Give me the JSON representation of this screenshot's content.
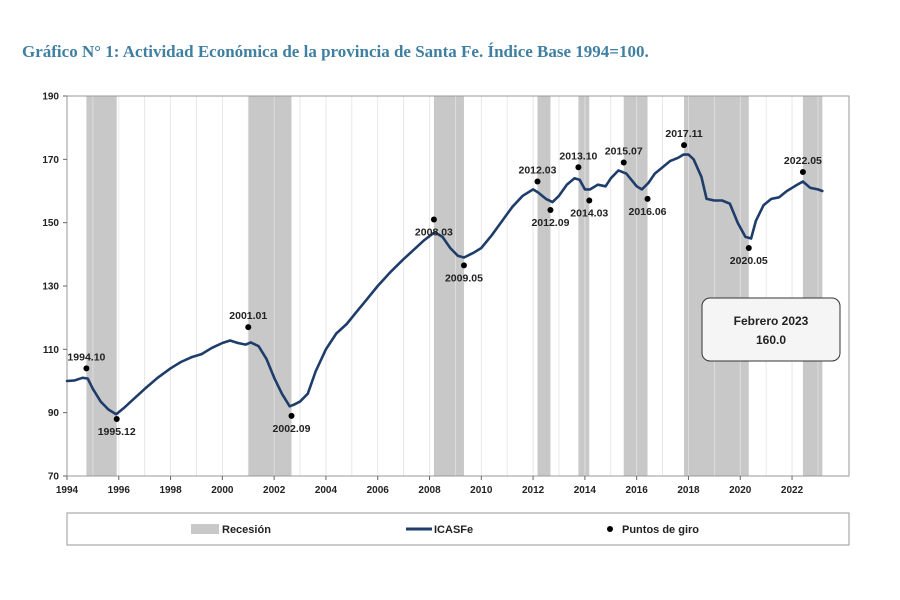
{
  "chart_data": {
    "type": "line",
    "title": "Gráfico N° 1: Actividad Económica de la provincia de Santa Fe. Índice Base 1994=100.",
    "xlabel": "",
    "ylabel": "",
    "xlim": [
      1994,
      2024.2
    ],
    "ylim": [
      70,
      190
    ],
    "x_ticks": [
      1994,
      1996,
      1998,
      2000,
      2002,
      2004,
      2006,
      2008,
      2010,
      2012,
      2014,
      2016,
      2018,
      2020,
      2022
    ],
    "y_ticks": [
      70,
      90,
      110,
      130,
      150,
      170,
      190
    ],
    "grid": "vertical",
    "colors": {
      "series": "#1f3d6b",
      "recession": "#c8c8c8",
      "title": "#3f7fa2",
      "points": "#000000"
    },
    "recessions": [
      [
        1994.75,
        1995.92
      ],
      [
        2001.0,
        2002.67
      ],
      [
        2008.17,
        2009.33
      ],
      [
        2012.17,
        2012.67
      ],
      [
        2013.75,
        2014.17
      ],
      [
        2015.5,
        2016.42
      ],
      [
        2017.83,
        2020.33
      ],
      [
        2022.42,
        2023.17
      ]
    ],
    "series": [
      {
        "name": "ICASFe",
        "x": [
          1994.0,
          1994.3,
          1994.6,
          1994.8,
          1995.0,
          1995.3,
          1995.6,
          1995.9,
          1996.2,
          1996.6,
          1997.0,
          1997.5,
          1998.0,
          1998.4,
          1998.8,
          1999.2,
          1999.6,
          2000.0,
          2000.3,
          2000.6,
          2000.9,
          2001.1,
          2001.4,
          2001.7,
          2002.0,
          2002.3,
          2002.6,
          2002.75,
          2003.0,
          2003.3,
          2003.6,
          2004.0,
          2004.4,
          2004.8,
          2005.2,
          2005.6,
          2006.0,
          2006.5,
          2007.0,
          2007.4,
          2007.8,
          2008.2,
          2008.5,
          2008.8,
          2009.1,
          2009.33,
          2009.7,
          2010.0,
          2010.4,
          2010.8,
          2011.2,
          2011.6,
          2012.0,
          2012.2,
          2012.5,
          2012.75,
          2013.0,
          2013.3,
          2013.6,
          2013.8,
          2014.0,
          2014.2,
          2014.5,
          2014.8,
          2015.0,
          2015.3,
          2015.6,
          2015.8,
          2016.0,
          2016.2,
          2016.45,
          2016.7,
          2017.0,
          2017.3,
          2017.6,
          2017.8,
          2018.0,
          2018.2,
          2018.5,
          2018.7,
          2019.0,
          2019.3,
          2019.6,
          2019.9,
          2020.2,
          2020.42,
          2020.6,
          2020.9,
          2021.2,
          2021.5,
          2021.8,
          2022.1,
          2022.42,
          2022.7,
          2023.0,
          2023.17
        ],
        "values": [
          100.0,
          100.2,
          101.0,
          100.8,
          97.5,
          93.5,
          91.0,
          89.5,
          91.5,
          94.5,
          97.5,
          101.0,
          104.0,
          106.0,
          107.5,
          108.5,
          110.5,
          112.0,
          112.8,
          112.0,
          111.5,
          112.2,
          111.0,
          107.0,
          101.0,
          96.0,
          92.0,
          92.5,
          93.5,
          96.0,
          103.0,
          110.0,
          115.0,
          118.0,
          122.0,
          126.0,
          130.0,
          134.5,
          138.5,
          141.5,
          144.5,
          147.0,
          145.5,
          142.0,
          139.5,
          139.0,
          140.5,
          142.0,
          146.0,
          150.5,
          155.0,
          158.5,
          160.5,
          159.5,
          157.5,
          156.5,
          158.5,
          162.0,
          164.0,
          163.5,
          160.5,
          160.5,
          162.0,
          161.5,
          164.0,
          166.5,
          165.5,
          163.5,
          161.5,
          160.5,
          162.5,
          165.5,
          167.5,
          169.5,
          170.5,
          171.5,
          171.5,
          170.0,
          164.5,
          157.5,
          157.0,
          157.0,
          156.0,
          150.0,
          145.5,
          145.0,
          150.5,
          155.5,
          157.5,
          158.0,
          160.0,
          161.5,
          163.0,
          161.0,
          160.5,
          160.0
        ]
      }
    ],
    "turning_points": [
      {
        "label": "1994.10",
        "x": 1994.75,
        "y": 104.0,
        "pos": "above"
      },
      {
        "label": "1995.12",
        "x": 1995.92,
        "y": 88.0,
        "pos": "below"
      },
      {
        "label": "2001.01",
        "x": 2001.0,
        "y": 117.0,
        "pos": "above"
      },
      {
        "label": "2002.09",
        "x": 2002.67,
        "y": 89.0,
        "pos": "below"
      },
      {
        "label": "2008.03",
        "x": 2008.17,
        "y": 151.0,
        "pos": "below"
      },
      {
        "label": "2009.05",
        "x": 2009.33,
        "y": 136.5,
        "pos": "below"
      },
      {
        "label": "2012.03",
        "x": 2012.17,
        "y": 163.0,
        "pos": "above"
      },
      {
        "label": "2012.09",
        "x": 2012.67,
        "y": 154.0,
        "pos": "below"
      },
      {
        "label": "2013.10",
        "x": 2013.75,
        "y": 167.5,
        "pos": "above"
      },
      {
        "label": "2014.03",
        "x": 2014.17,
        "y": 157.0,
        "pos": "below"
      },
      {
        "label": "2015.07",
        "x": 2015.5,
        "y": 169.0,
        "pos": "above"
      },
      {
        "label": "2016.06",
        "x": 2016.42,
        "y": 157.5,
        "pos": "below"
      },
      {
        "label": "2017.11",
        "x": 2017.83,
        "y": 174.5,
        "pos": "above"
      },
      {
        "label": "2020.05",
        "x": 2020.33,
        "y": 142.0,
        "pos": "below"
      },
      {
        "label": "2022.05",
        "x": 2022.42,
        "y": 166.0,
        "pos": "above"
      }
    ],
    "callout": {
      "line1": "Febrero 2023",
      "line2": "160.0"
    },
    "legend": {
      "recession": "Recesión",
      "series": "ICASFe",
      "points": "Puntos de giro",
      "position": "bottom"
    }
  }
}
